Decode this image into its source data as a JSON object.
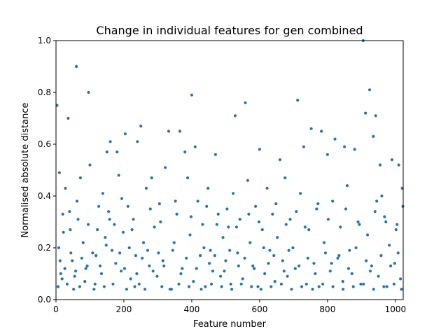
{
  "chart_data": {
    "type": "scatter",
    "title": "Change in individual features for gen combined",
    "xlabel": "Feature number",
    "ylabel": "Normalised absolute distance",
    "xlim": [
      0,
      1023
    ],
    "ylim": [
      0,
      1.0
    ],
    "x_ticks": [
      0,
      200,
      400,
      600,
      800,
      1000
    ],
    "y_ticks": [
      0.0,
      0.2,
      0.4,
      0.6,
      0.8,
      1.0
    ],
    "x_tick_labels": [
      "0",
      "200",
      "400",
      "600",
      "800",
      "1000"
    ],
    "y_tick_labels": [
      "0.0",
      "0.2",
      "0.4",
      "0.6",
      "0.8",
      "1.0"
    ],
    "grid": false,
    "legend": "none",
    "marker_color": "#1f77b4",
    "points": [
      [
        3,
        0.75
      ],
      [
        10,
        0.49
      ],
      [
        36,
        0.7
      ],
      [
        60,
        0.9
      ],
      [
        96,
        0.8
      ],
      [
        204,
        0.64
      ],
      [
        250,
        0.67
      ],
      [
        332,
        0.65
      ],
      [
        365,
        0.65
      ],
      [
        400,
        0.79
      ],
      [
        528,
        0.71
      ],
      [
        558,
        0.76
      ],
      [
        712,
        0.77
      ],
      [
        752,
        0.66
      ],
      [
        782,
        0.65
      ],
      [
        822,
        0.62
      ],
      [
        905,
        1.0
      ],
      [
        912,
        0.72
      ],
      [
        924,
        0.81
      ],
      [
        942,
        0.71
      ],
      [
        160,
        0.61
      ],
      [
        180,
        0.57
      ],
      [
        150,
        0.57
      ],
      [
        240,
        0.61
      ],
      [
        410,
        0.59
      ],
      [
        380,
        0.57
      ],
      [
        470,
        0.56
      ],
      [
        600,
        0.58
      ],
      [
        660,
        0.54
      ],
      [
        730,
        0.59
      ],
      [
        800,
        0.56
      ],
      [
        850,
        0.59
      ],
      [
        880,
        0.58
      ],
      [
        990,
        0.54
      ],
      [
        1010,
        0.52
      ],
      [
        1020,
        0.43
      ],
      [
        955,
        0.52
      ],
      [
        935,
        0.63
      ],
      [
        960,
        0.4
      ],
      [
        945,
        0.38
      ],
      [
        8,
        0.2
      ],
      [
        14,
        0.1
      ],
      [
        22,
        0.26
      ],
      [
        28,
        0.43
      ],
      [
        40,
        0.34
      ],
      [
        48,
        0.15
      ],
      [
        55,
        0.09
      ],
      [
        65,
        0.31
      ],
      [
        72,
        0.47
      ],
      [
        80,
        0.22
      ],
      [
        88,
        0.12
      ],
      [
        100,
        0.52
      ],
      [
        108,
        0.18
      ],
      [
        115,
        0.06
      ],
      [
        122,
        0.27
      ],
      [
        130,
        0.13
      ],
      [
        138,
        0.41
      ],
      [
        145,
        0.24
      ],
      [
        155,
        0.34
      ],
      [
        165,
        0.19
      ],
      [
        172,
        0.29
      ],
      [
        185,
        0.48
      ],
      [
        192,
        0.11
      ],
      [
        198,
        0.26
      ],
      [
        212,
        0.36
      ],
      [
        220,
        0.08
      ],
      [
        228,
        0.31
      ],
      [
        235,
        0.17
      ],
      [
        245,
        0.06
      ],
      [
        258,
        0.22
      ],
      [
        266,
        0.43
      ],
      [
        275,
        0.13
      ],
      [
        282,
        0.47
      ],
      [
        290,
        0.28
      ],
      [
        298,
        0.09
      ],
      [
        305,
        0.37
      ],
      [
        315,
        0.15
      ],
      [
        322,
        0.51
      ],
      [
        340,
        0.04
      ],
      [
        348,
        0.22
      ],
      [
        356,
        0.33
      ],
      [
        372,
        0.12
      ],
      [
        388,
        0.47
      ],
      [
        395,
        0.25
      ],
      [
        405,
        0.07
      ],
      [
        418,
        0.38
      ],
      [
        425,
        0.17
      ],
      [
        432,
        0.29
      ],
      [
        440,
        0.05
      ],
      [
        448,
        0.43
      ],
      [
        455,
        0.19
      ],
      [
        462,
        0.11
      ],
      [
        478,
        0.33
      ],
      [
        485,
        0.09
      ],
      [
        492,
        0.24
      ],
      [
        500,
        0.15
      ],
      [
        508,
        0.28
      ],
      [
        515,
        0.06
      ],
      [
        522,
        0.41
      ],
      [
        535,
        0.18
      ],
      [
        542,
        0.31
      ],
      [
        550,
        0.08
      ],
      [
        565,
        0.46
      ],
      [
        572,
        0.22
      ],
      [
        580,
        0.13
      ],
      [
        588,
        0.36
      ],
      [
        595,
        0.05
      ],
      [
        608,
        0.27
      ],
      [
        615,
        0.1
      ],
      [
        622,
        0.43
      ],
      [
        630,
        0.19
      ],
      [
        638,
        0.33
      ],
      [
        645,
        0.07
      ],
      [
        652,
        0.24
      ],
      [
        668,
        0.15
      ],
      [
        675,
        0.47
      ],
      [
        682,
        0.09
      ],
      [
        690,
        0.31
      ],
      [
        698,
        0.2
      ],
      [
        705,
        0.12
      ],
      [
        720,
        0.41
      ],
      [
        738,
        0.06
      ],
      [
        745,
        0.27
      ],
      [
        760,
        0.14
      ],
      [
        768,
        0.35
      ],
      [
        775,
        0.05
      ],
      [
        790,
        0.22
      ],
      [
        808,
        0.11
      ],
      [
        815,
        0.38
      ],
      [
        830,
        0.16
      ],
      [
        838,
        0.28
      ],
      [
        845,
        0.07
      ],
      [
        858,
        0.44
      ],
      [
        865,
        0.19
      ],
      [
        872,
        0.1
      ],
      [
        890,
        0.3
      ],
      [
        898,
        0.06
      ],
      [
        918,
        0.25
      ],
      [
        930,
        0.13
      ],
      [
        950,
        0.09
      ],
      [
        968,
        0.32
      ],
      [
        975,
        0.05
      ],
      [
        982,
        0.21
      ],
      [
        998,
        0.14
      ],
      [
        1005,
        0.29
      ],
      [
        1015,
        0.08
      ],
      [
        1022,
        0.36
      ],
      [
        6,
        0.05
      ],
      [
        18,
        0.08
      ],
      [
        33,
        0.06
      ],
      [
        52,
        0.04
      ],
      [
        70,
        0.05
      ],
      [
        85,
        0.07
      ],
      [
        112,
        0.04
      ],
      [
        142,
        0.05
      ],
      [
        168,
        0.06
      ],
      [
        208,
        0.04
      ],
      [
        232,
        0.05
      ],
      [
        262,
        0.04
      ],
      [
        312,
        0.05
      ],
      [
        336,
        0.04
      ],
      [
        362,
        0.06
      ],
      [
        392,
        0.05
      ],
      [
        428,
        0.04
      ],
      [
        458,
        0.06
      ],
      [
        488,
        0.05
      ],
      [
        518,
        0.04
      ],
      [
        546,
        0.06
      ],
      [
        576,
        0.05
      ],
      [
        604,
        0.04
      ],
      [
        634,
        0.05
      ],
      [
        664,
        0.06
      ],
      [
        694,
        0.04
      ],
      [
        724,
        0.05
      ],
      [
        756,
        0.04
      ],
      [
        786,
        0.06
      ],
      [
        816,
        0.05
      ],
      [
        846,
        0.04
      ],
      [
        876,
        0.05
      ],
      [
        906,
        0.06
      ],
      [
        936,
        0.04
      ],
      [
        966,
        0.05
      ],
      [
        996,
        0.06
      ],
      [
        1018,
        0.04
      ],
      [
        12,
        0.15
      ],
      [
        26,
        0.12
      ],
      [
        44,
        0.18
      ],
      [
        58,
        0.11
      ],
      [
        76,
        0.16
      ],
      [
        92,
        0.13
      ],
      [
        118,
        0.17
      ],
      [
        134,
        0.1
      ],
      [
        148,
        0.21
      ],
      [
        176,
        0.14
      ],
      [
        188,
        0.18
      ],
      [
        202,
        0.12
      ],
      [
        216,
        0.2
      ],
      [
        238,
        0.1
      ],
      [
        254,
        0.16
      ],
      [
        270,
        0.19
      ],
      [
        286,
        0.11
      ],
      [
        302,
        0.18
      ],
      [
        318,
        0.13
      ],
      [
        344,
        0.19
      ],
      [
        368,
        0.1
      ],
      [
        384,
        0.16
      ],
      [
        414,
        0.12
      ],
      [
        436,
        0.2
      ],
      [
        452,
        0.14
      ],
      [
        468,
        0.17
      ],
      [
        496,
        0.11
      ],
      [
        512,
        0.19
      ],
      [
        538,
        0.13
      ],
      [
        556,
        0.16
      ],
      [
        584,
        0.12
      ],
      [
        612,
        0.2
      ],
      [
        626,
        0.14
      ],
      [
        642,
        0.17
      ],
      [
        672,
        0.11
      ],
      [
        686,
        0.19
      ],
      [
        716,
        0.13
      ],
      [
        742,
        0.16
      ],
      [
        764,
        0.1
      ],
      [
        794,
        0.18
      ],
      [
        812,
        0.14
      ],
      [
        834,
        0.17
      ],
      [
        862,
        0.12
      ],
      [
        884,
        0.2
      ],
      [
        914,
        0.15
      ],
      [
        926,
        0.11
      ],
      [
        958,
        0.17
      ],
      [
        986,
        0.13
      ],
      [
        1008,
        0.18
      ],
      [
        20,
        0.33
      ],
      [
        42,
        0.27
      ],
      [
        62,
        0.38
      ],
      [
        95,
        0.29
      ],
      [
        126,
        0.36
      ],
      [
        158,
        0.31
      ],
      [
        194,
        0.39
      ],
      [
        224,
        0.27
      ],
      [
        278,
        0.35
      ],
      [
        308,
        0.3
      ],
      [
        352,
        0.38
      ],
      [
        398,
        0.32
      ],
      [
        444,
        0.36
      ],
      [
        474,
        0.29
      ],
      [
        504,
        0.35
      ],
      [
        532,
        0.28
      ],
      [
        568,
        0.33
      ],
      [
        598,
        0.3
      ],
      [
        648,
        0.37
      ],
      [
        678,
        0.29
      ],
      [
        708,
        0.34
      ],
      [
        734,
        0.28
      ],
      [
        772,
        0.37
      ],
      [
        802,
        0.31
      ],
      [
        854,
        0.35
      ],
      [
        894,
        0.29
      ],
      [
        940,
        0.34
      ],
      [
        972,
        0.3
      ],
      [
        1002,
        0.27
      ]
    ]
  }
}
